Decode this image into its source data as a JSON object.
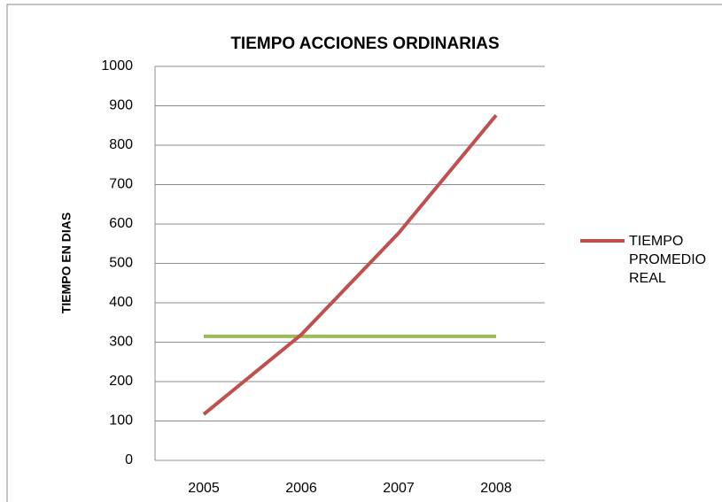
{
  "chart_data": {
    "type": "line",
    "title": "TIEMPO ACCIONES  ORDINARIAS",
    "y_label": "TIEMPO EN DIAS",
    "categories": [
      "2005",
      "2006",
      "2007",
      "2008"
    ],
    "series": [
      {
        "name": "TIEMPO PROMEDIO REAL",
        "color": "#c0504d",
        "values": [
          117,
          319,
          577,
          876
        ]
      },
      {
        "color": "#9bbb59",
        "values": [
          315,
          315,
          315,
          315
        ]
      }
    ],
    "ylim": [
      0,
      1000
    ],
    "yticks": [
      0,
      100,
      200,
      300,
      400,
      500,
      600,
      700,
      800,
      900,
      1000
    ],
    "grid": true,
    "legend": "right"
  }
}
